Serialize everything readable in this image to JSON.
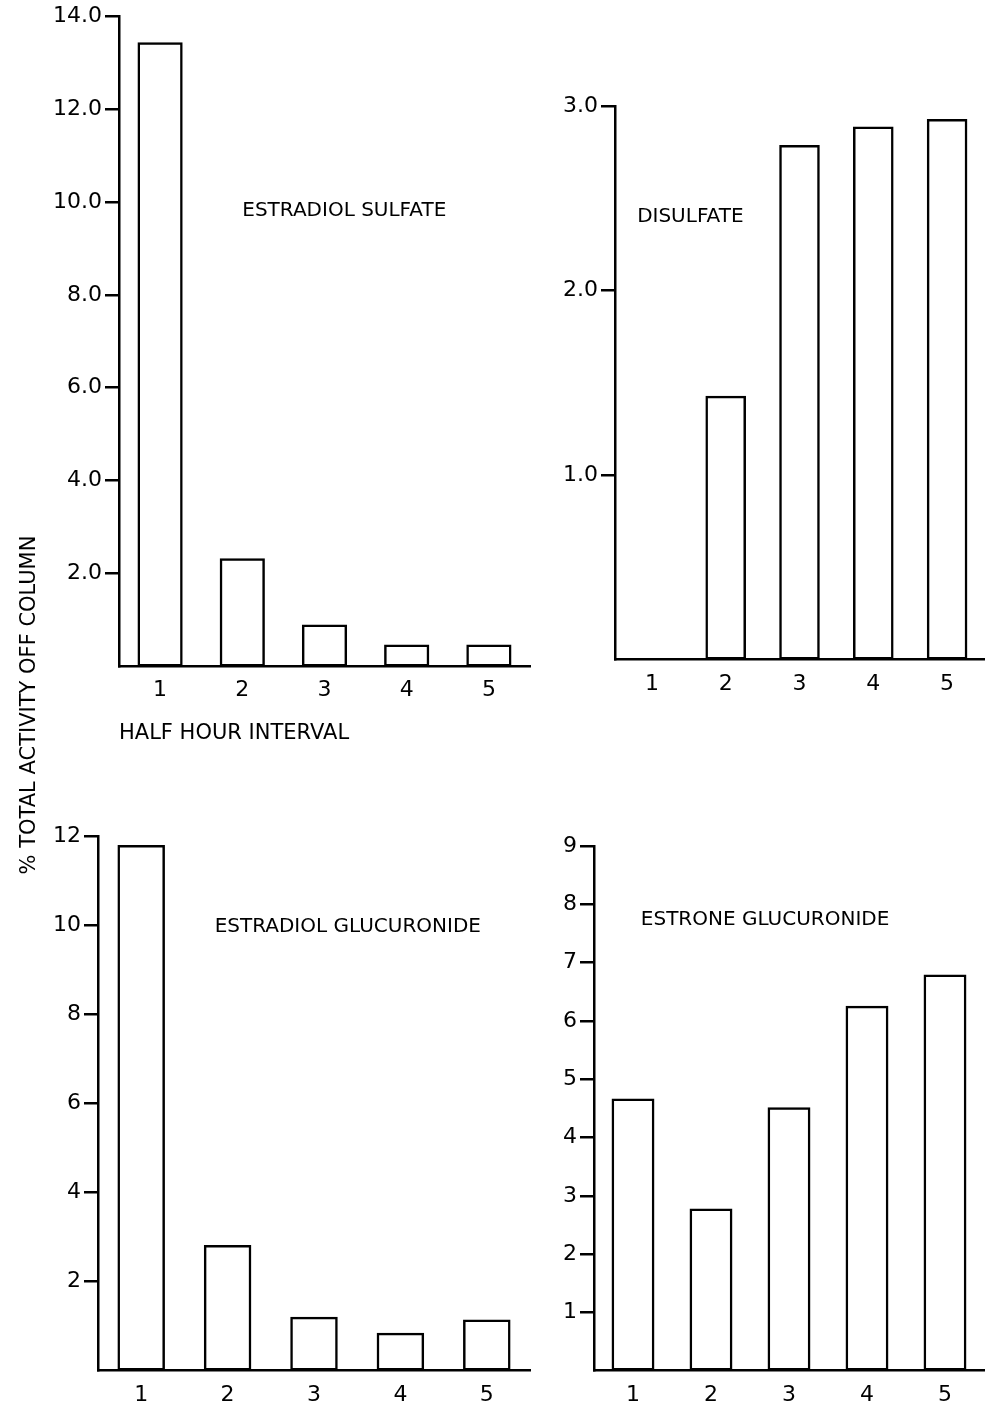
{
  "chart_data": [
    {
      "type": "bar",
      "title": "ESTRADIOL SULFATE",
      "xlabel": "HALF HOUR INTERVAL",
      "ylabel": "% TOTAL ACTIVITY OFF COLUMN",
      "categories": [
        "1",
        "2",
        "3",
        "4",
        "5"
      ],
      "values": [
        13.44,
        2.33,
        0.9,
        0.47,
        0.47
      ],
      "color": "#000000",
      "ylim": [
        0,
        14
      ],
      "yticks": [
        {
          "value": 2,
          "label": "2.0"
        },
        {
          "value": 4,
          "label": "4.0"
        },
        {
          "value": 6,
          "label": "6.0"
        },
        {
          "value": 8,
          "label": "8.0"
        },
        {
          "value": 10,
          "label": "10.0"
        },
        {
          "value": 12,
          "label": "12.0"
        },
        {
          "value": 14,
          "label": "14.0"
        }
      ]
    },
    {
      "type": "bar",
      "title": "DISULFATE",
      "categories": [
        "1",
        "2",
        "3",
        "4",
        "5"
      ],
      "values": [
        0,
        1.43,
        2.79,
        2.89,
        2.93
      ],
      "color": "#000000",
      "ylim": [
        0,
        3
      ],
      "yticks": [
        {
          "value": 1,
          "label": "1.0"
        },
        {
          "value": 2,
          "label": "2.0"
        },
        {
          "value": 3,
          "label": "3.0"
        }
      ]
    },
    {
      "type": "bar",
      "title": "ESTRADIOL GLUCURONIDE",
      "categories": [
        "1",
        "2",
        "3",
        "4",
        "5"
      ],
      "values": [
        11.8,
        2.82,
        1.21,
        0.85,
        1.15
      ],
      "color": "#000000",
      "ylim": [
        0,
        12
      ],
      "yticks": [
        2,
        4,
        6,
        8,
        10,
        12
      ]
    },
    {
      "type": "bar",
      "title": "ESTRONE GLUCURONIDE",
      "categories": [
        "1",
        "2",
        "3",
        "4",
        "5"
      ],
      "values": [
        4.67,
        2.78,
        4.52,
        6.26,
        6.8
      ],
      "color": "#000000",
      "ylim": [
        0,
        9
      ],
      "yticks": [
        1,
        2,
        3,
        4,
        5,
        6,
        7,
        8,
        9
      ]
    }
  ]
}
